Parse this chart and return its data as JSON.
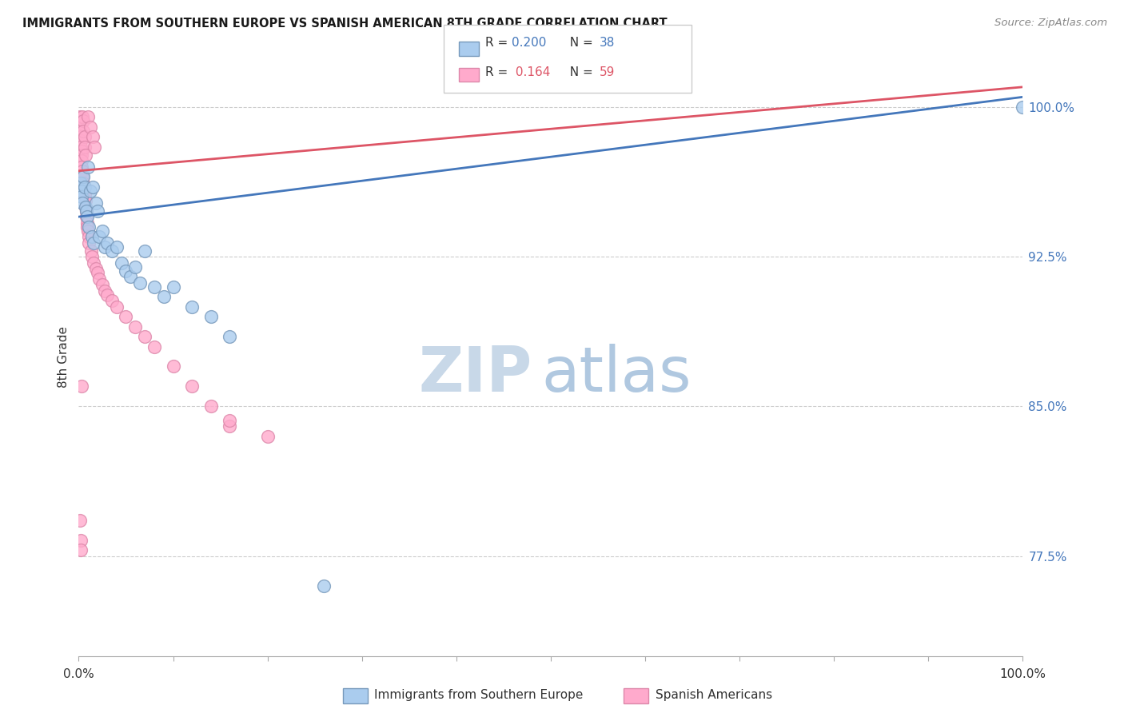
{
  "title": "IMMIGRANTS FROM SOUTHERN EUROPE VS SPANISH AMERICAN 8TH GRADE CORRELATION CHART",
  "source": "Source: ZipAtlas.com",
  "ylabel": "8th Grade",
  "ylabel_right_ticks": [
    "100.0%",
    "92.5%",
    "85.0%",
    "77.5%"
  ],
  "ylabel_right_values": [
    1.0,
    0.925,
    0.85,
    0.775
  ],
  "xlim": [
    0.0,
    1.0
  ],
  "ylim": [
    0.725,
    1.025
  ],
  "blue_line_color": "#4477bb",
  "pink_line_color": "#dd5566",
  "scatter_blue_face": "#aaccee",
  "scatter_blue_edge": "#7799bb",
  "scatter_pink_face": "#ffaacc",
  "scatter_pink_edge": "#dd88aa",
  "watermark_zip_color": "#c8d8e8",
  "watermark_atlas_color": "#b0c8e0",
  "legend_edge_color": "#cccccc",
  "grid_color": "#cccccc",
  "right_tick_color": "#4477bb",
  "blue_line_x0": 0.0,
  "blue_line_y0": 0.945,
  "blue_line_x1": 1.0,
  "blue_line_y1": 1.005,
  "pink_line_x0": 0.0,
  "pink_line_y0": 0.968,
  "pink_line_x1": 1.0,
  "pink_line_y1": 1.01,
  "blue_x": [
    0.001,
    0.002,
    0.003,
    0.003,
    0.004,
    0.005,
    0.006,
    0.007,
    0.008,
    0.009,
    0.01,
    0.011,
    0.012,
    0.014,
    0.015,
    0.016,
    0.018,
    0.02,
    0.022,
    0.025,
    0.028,
    0.03,
    0.035,
    0.04,
    0.045,
    0.05,
    0.055,
    0.06,
    0.065,
    0.07,
    0.08,
    0.09,
    0.1,
    0.12,
    0.14,
    0.16,
    0.26,
    1.0
  ],
  "blue_y": [
    0.96,
    0.962,
    0.958,
    0.955,
    0.952,
    0.965,
    0.96,
    0.95,
    0.948,
    0.945,
    0.97,
    0.94,
    0.958,
    0.935,
    0.96,
    0.932,
    0.952,
    0.948,
    0.935,
    0.938,
    0.93,
    0.932,
    0.928,
    0.93,
    0.922,
    0.918,
    0.915,
    0.92,
    0.912,
    0.928,
    0.91,
    0.905,
    0.91,
    0.9,
    0.895,
    0.885,
    0.76,
    1.0
  ],
  "pink_x": [
    0.001,
    0.001,
    0.001,
    0.002,
    0.002,
    0.002,
    0.003,
    0.003,
    0.003,
    0.003,
    0.004,
    0.004,
    0.004,
    0.005,
    0.005,
    0.005,
    0.005,
    0.006,
    0.006,
    0.006,
    0.007,
    0.007,
    0.007,
    0.008,
    0.008,
    0.009,
    0.009,
    0.01,
    0.01,
    0.011,
    0.011,
    0.012,
    0.013,
    0.014,
    0.015,
    0.016,
    0.017,
    0.018,
    0.02,
    0.022,
    0.025,
    0.028,
    0.03,
    0.035,
    0.04,
    0.05,
    0.06,
    0.07,
    0.08,
    0.1,
    0.12,
    0.14,
    0.16,
    0.2,
    0.001,
    0.002,
    0.002,
    0.003,
    0.16
  ],
  "pink_y": [
    0.995,
    0.992,
    0.988,
    0.985,
    0.983,
    0.98,
    0.978,
    0.976,
    0.973,
    0.97,
    0.995,
    0.968,
    0.965,
    0.993,
    0.962,
    0.988,
    0.958,
    0.985,
    0.956,
    0.98,
    0.976,
    0.953,
    0.95,
    0.948,
    0.945,
    0.942,
    0.94,
    0.995,
    0.938,
    0.935,
    0.932,
    0.99,
    0.928,
    0.925,
    0.985,
    0.922,
    0.98,
    0.919,
    0.917,
    0.914,
    0.911,
    0.908,
    0.906,
    0.903,
    0.9,
    0.895,
    0.89,
    0.885,
    0.88,
    0.87,
    0.86,
    0.85,
    0.84,
    0.835,
    0.793,
    0.783,
    0.778,
    0.86,
    0.843
  ]
}
